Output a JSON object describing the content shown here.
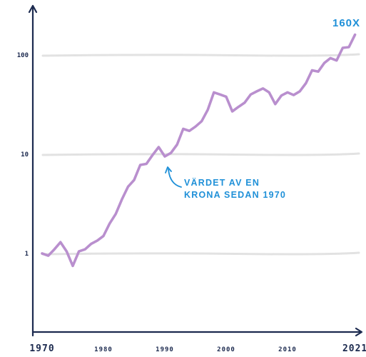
{
  "chart_data": {
    "type": "line",
    "title": "",
    "xlabel": "",
    "ylabel": "",
    "yscale": "log",
    "xlim": [
      1968,
      2023
    ],
    "ylim": [
      0.15,
      400
    ],
    "grid": "y",
    "y_ticks": [
      {
        "value": 1,
        "label": "1"
      },
      {
        "value": 10,
        "label": "10"
      },
      {
        "value": 100,
        "label": "100"
      }
    ],
    "x_ticks": [
      {
        "value": 1970,
        "label": "1970",
        "size": "large"
      },
      {
        "value": 1980,
        "label": "1980",
        "size": "small"
      },
      {
        "value": 1990,
        "label": "1990",
        "size": "small"
      },
      {
        "value": 2000,
        "label": "2000",
        "size": "small"
      },
      {
        "value": 2010,
        "label": "2010",
        "size": "small"
      },
      {
        "value": 2021,
        "label": "2021",
        "size": "large"
      }
    ],
    "series": [
      {
        "color": "#b98fce",
        "points": [
          [
            1970,
            1.0
          ],
          [
            1971,
            0.95
          ],
          [
            1972,
            1.1
          ],
          [
            1973,
            1.3
          ],
          [
            1974,
            1.05
          ],
          [
            1975,
            0.75
          ],
          [
            1976,
            1.05
          ],
          [
            1977,
            1.1
          ],
          [
            1978,
            1.25
          ],
          [
            1979,
            1.35
          ],
          [
            1980,
            1.5
          ],
          [
            1981,
            2.0
          ],
          [
            1982,
            2.5
          ],
          [
            1983,
            3.5
          ],
          [
            1984,
            4.7
          ],
          [
            1985,
            5.5
          ],
          [
            1986,
            7.8
          ],
          [
            1987,
            8.0
          ],
          [
            1988,
            9.8
          ],
          [
            1989,
            11.8
          ],
          [
            1990,
            9.5
          ],
          [
            1991,
            10.3
          ],
          [
            1992,
            12.5
          ],
          [
            1993,
            18.0
          ],
          [
            1994,
            17.2
          ],
          [
            1995,
            19.0
          ],
          [
            1996,
            21.5
          ],
          [
            1997,
            28.0
          ],
          [
            1998,
            42.0
          ],
          [
            1999,
            40.0
          ],
          [
            2000,
            38.0
          ],
          [
            2001,
            27.0
          ],
          [
            2002,
            30.0
          ],
          [
            2003,
            33.0
          ],
          [
            2004,
            40.0
          ],
          [
            2005,
            43.0
          ],
          [
            2006,
            46.0
          ],
          [
            2007,
            42.0
          ],
          [
            2008,
            32.0
          ],
          [
            2009,
            39.0
          ],
          [
            2010,
            42.0
          ],
          [
            2011,
            39.5
          ],
          [
            2012,
            43.0
          ],
          [
            2013,
            52.0
          ],
          [
            2014,
            70.0
          ],
          [
            2015,
            68.0
          ],
          [
            2016,
            83.0
          ],
          [
            2017,
            93.0
          ],
          [
            2018,
            88.0
          ],
          [
            2019,
            118.0
          ],
          [
            2020,
            120.0
          ],
          [
            2021,
            160.0
          ]
        ]
      }
    ],
    "annotations": [
      {
        "text": [
          "VÄRDET AV EN",
          "KRONA SEDAN 1970"
        ],
        "color": "#1f90d8"
      },
      {
        "text": [
          "160X"
        ],
        "color": "#1f90d8"
      }
    ],
    "colors": {
      "axis": "#1c2a4f",
      "grid": "#e2e2e2",
      "line": "#b98fce",
      "annotation": "#1f90d8"
    }
  }
}
